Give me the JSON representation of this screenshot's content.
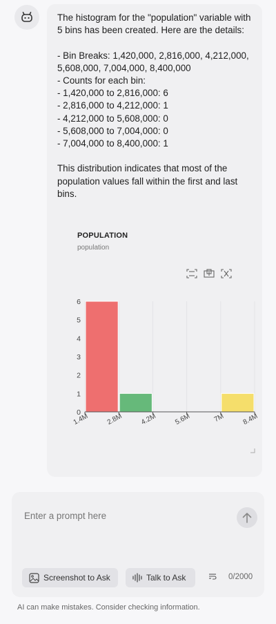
{
  "message": {
    "intro_line1": "The histogram for the \"population\" variable with",
    "intro_line2": "5 bins has been created. Here are the details:",
    "bin_breaks_line1": "- Bin Breaks: 1,420,000, 2,816,000, 4,212,000,",
    "bin_breaks_line2": "5,608,000, 7,004,000, 8,400,000",
    "counts_header": "- Counts for each bin:",
    "count_lines": [
      "- 1,420,000 to 2,816,000: 6",
      "- 2,816,000 to 4,212,000: 1",
      "- 4,212,000 to 5,608,000: 0",
      "- 5,608,000 to 7,004,000: 0",
      "- 7,004,000 to 8,400,000: 1"
    ],
    "conclusion_line1": "This distribution indicates that most of the",
    "conclusion_line2": "population values fall within the first and last",
    "conclusion_line3": "bins."
  },
  "chart_data": {
    "type": "bar",
    "title": "POPULATION",
    "subtitle": "population",
    "x_ticks": [
      "1.4M",
      "2.8M",
      "4.2M",
      "5.6M",
      "7M",
      "8.4M"
    ],
    "x_values": [
      1420000,
      2816000,
      4212000,
      5608000,
      7004000,
      8400000
    ],
    "bins": [
      {
        "from": 1420000,
        "to": 2816000,
        "count": 6,
        "color": "#ee6f6f"
      },
      {
        "from": 2816000,
        "to": 4212000,
        "count": 1,
        "color": "#66b97a"
      },
      {
        "from": 4212000,
        "to": 5608000,
        "count": 0,
        "color": "#5b8ff9"
      },
      {
        "from": 5608000,
        "to": 7004000,
        "count": 0,
        "color": "#999999"
      },
      {
        "from": 7004000,
        "to": 8400000,
        "count": 1,
        "color": "#f5de6b"
      }
    ],
    "y_ticks": [
      "0",
      "1",
      "2",
      "3",
      "4",
      "5",
      "6"
    ],
    "ylim": [
      0,
      6
    ],
    "xlim": [
      1420000,
      8400000
    ],
    "grid": "vertical"
  },
  "composer": {
    "placeholder": "Enter a prompt here",
    "screenshot_label": "Screenshot to Ask",
    "talk_label": "Talk to Ask",
    "char_count": "0/2000"
  },
  "footer": {
    "disclaimer": "AI can make mistakes. Consider checking information."
  },
  "icons": {
    "avatar": "robot-icon",
    "tool_1": "fullscreen-icon",
    "tool_2": "select-area-icon",
    "tool_3": "reset-zoom-icon",
    "send": "arrow-up-icon",
    "screenshot": "image-icon",
    "talk": "waveform-icon",
    "count": "format-icon"
  }
}
